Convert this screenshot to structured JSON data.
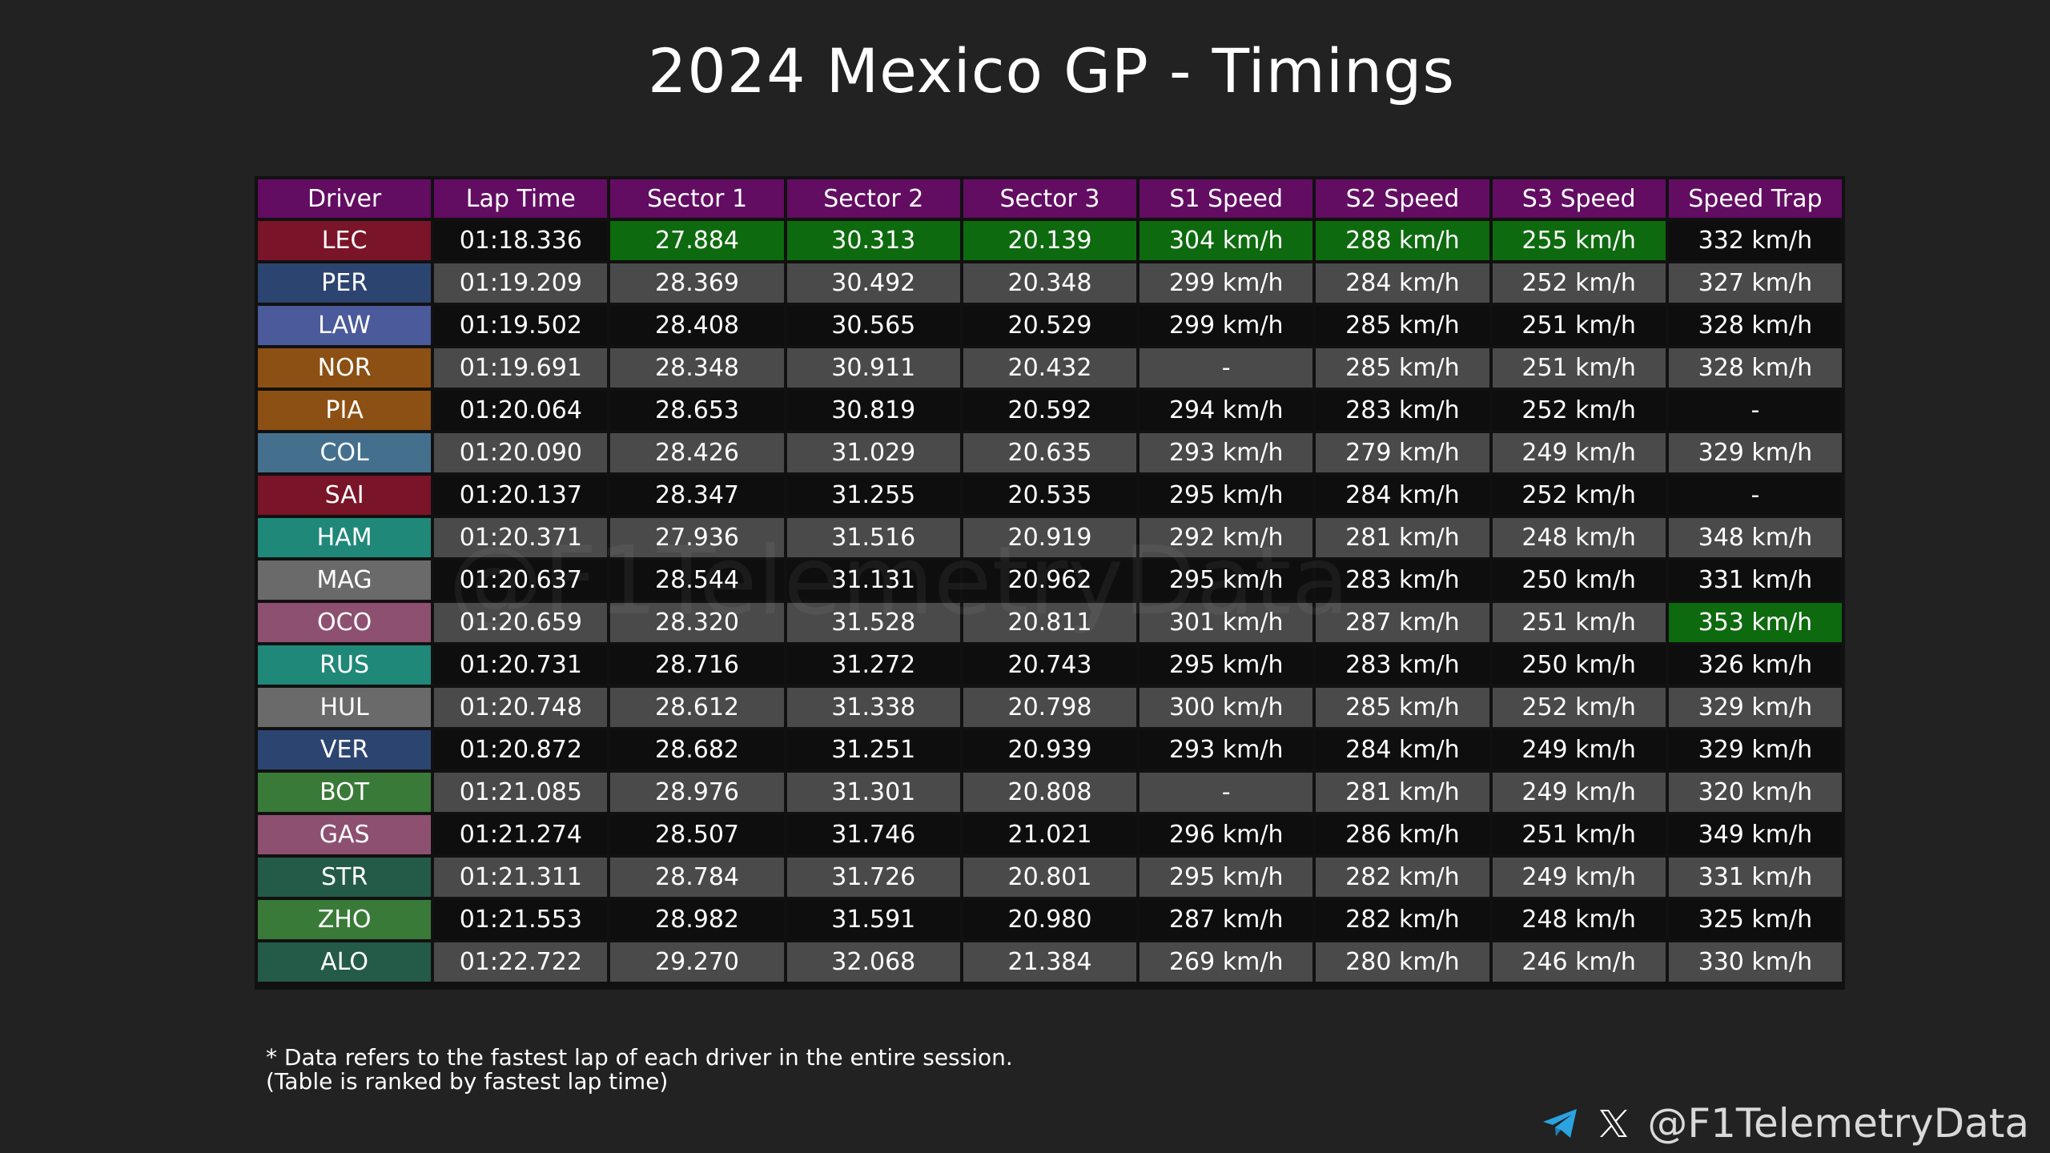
{
  "title": "2024 Mexico GP - Timings",
  "watermark": "@F1TelemetryData",
  "footnote": {
    "line1": "* Data refers to the fastest lap of each driver in the entire session.",
    "line2": "(Table is ranked by fastest lap time)"
  },
  "credit": {
    "handle": "@F1TelemetryData",
    "icons": [
      "telegram-icon",
      "x-icon"
    ]
  },
  "colors": {
    "background": "#222222",
    "header": "#620c62",
    "row_dark": "#0e0e0e",
    "row_light": "#4a4a4a",
    "best": "#0e6a0e"
  },
  "chart_data": {
    "type": "table",
    "title": "2024 Mexico GP - Timings",
    "columns": [
      "Driver",
      "Lap Time",
      "Sector 1",
      "Sector 2",
      "Sector 3",
      "S1 Speed",
      "S2 Speed",
      "S3 Speed",
      "Speed Trap"
    ],
    "best_cells": [
      [
        0,
        2
      ],
      [
        0,
        3
      ],
      [
        0,
        4
      ],
      [
        0,
        5
      ],
      [
        0,
        6
      ],
      [
        0,
        7
      ],
      [
        9,
        8
      ]
    ],
    "rows": [
      {
        "driver": "LEC",
        "team_color": "#7a1428",
        "cells": [
          "01:18.336",
          "27.884",
          "30.313",
          "20.139",
          "304 km/h",
          "288 km/h",
          "255 km/h",
          "332 km/h"
        ]
      },
      {
        "driver": "PER",
        "team_color": "#2c4470",
        "cells": [
          "01:19.209",
          "28.369",
          "30.492",
          "20.348",
          "299 km/h",
          "284 km/h",
          "252 km/h",
          "327 km/h"
        ]
      },
      {
        "driver": "LAW",
        "team_color": "#4a5a9a",
        "cells": [
          "01:19.502",
          "28.408",
          "30.565",
          "20.529",
          "299 km/h",
          "285 km/h",
          "251 km/h",
          "328 km/h"
        ]
      },
      {
        "driver": "NOR",
        "team_color": "#8c5014",
        "cells": [
          "01:19.691",
          "28.348",
          "30.911",
          "20.432",
          "-",
          "285 km/h",
          "251 km/h",
          "328 km/h"
        ]
      },
      {
        "driver": "PIA",
        "team_color": "#8c5014",
        "cells": [
          "01:20.064",
          "28.653",
          "30.819",
          "20.592",
          "294 km/h",
          "283 km/h",
          "252 km/h",
          "-"
        ]
      },
      {
        "driver": "COL",
        "team_color": "#44708e",
        "cells": [
          "01:20.090",
          "28.426",
          "31.029",
          "20.635",
          "293 km/h",
          "279 km/h",
          "249 km/h",
          "329 km/h"
        ]
      },
      {
        "driver": "SAI",
        "team_color": "#7a1428",
        "cells": [
          "01:20.137",
          "28.347",
          "31.255",
          "20.535",
          "295 km/h",
          "284 km/h",
          "252 km/h",
          "-"
        ]
      },
      {
        "driver": "HAM",
        "team_color": "#208878",
        "cells": [
          "01:20.371",
          "27.936",
          "31.516",
          "20.919",
          "292 km/h",
          "281 km/h",
          "248 km/h",
          "348 km/h"
        ]
      },
      {
        "driver": "MAG",
        "team_color": "#6a6a6a",
        "cells": [
          "01:20.637",
          "28.544",
          "31.131",
          "20.962",
          "295 km/h",
          "283 km/h",
          "250 km/h",
          "331 km/h"
        ]
      },
      {
        "driver": "OCO",
        "team_color": "#8e5070",
        "cells": [
          "01:20.659",
          "28.320",
          "31.528",
          "20.811",
          "301 km/h",
          "287 km/h",
          "251 km/h",
          "353 km/h"
        ]
      },
      {
        "driver": "RUS",
        "team_color": "#208878",
        "cells": [
          "01:20.731",
          "28.716",
          "31.272",
          "20.743",
          "295 km/h",
          "283 km/h",
          "250 km/h",
          "326 km/h"
        ]
      },
      {
        "driver": "HUL",
        "team_color": "#6a6a6a",
        "cells": [
          "01:20.748",
          "28.612",
          "31.338",
          "20.798",
          "300 km/h",
          "285 km/h",
          "252 km/h",
          "329 km/h"
        ]
      },
      {
        "driver": "VER",
        "team_color": "#2c4470",
        "cells": [
          "01:20.872",
          "28.682",
          "31.251",
          "20.939",
          "293 km/h",
          "284 km/h",
          "249 km/h",
          "329 km/h"
        ]
      },
      {
        "driver": "BOT",
        "team_color": "#3a7a38",
        "cells": [
          "01:21.085",
          "28.976",
          "31.301",
          "20.808",
          "-",
          "281 km/h",
          "249 km/h",
          "320 km/h"
        ]
      },
      {
        "driver": "GAS",
        "team_color": "#8e5070",
        "cells": [
          "01:21.274",
          "28.507",
          "31.746",
          "21.021",
          "296 km/h",
          "286 km/h",
          "251 km/h",
          "349 km/h"
        ]
      },
      {
        "driver": "STR",
        "team_color": "#245a48",
        "cells": [
          "01:21.311",
          "28.784",
          "31.726",
          "20.801",
          "295 km/h",
          "282 km/h",
          "249 km/h",
          "331 km/h"
        ]
      },
      {
        "driver": "ZHO",
        "team_color": "#3a7a38",
        "cells": [
          "01:21.553",
          "28.982",
          "31.591",
          "20.980",
          "287 km/h",
          "282 km/h",
          "248 km/h",
          "325 km/h"
        ]
      },
      {
        "driver": "ALO",
        "team_color": "#245a48",
        "cells": [
          "01:22.722",
          "29.270",
          "32.068",
          "21.384",
          "269 km/h",
          "280 km/h",
          "246 km/h",
          "330 km/h"
        ]
      }
    ]
  }
}
